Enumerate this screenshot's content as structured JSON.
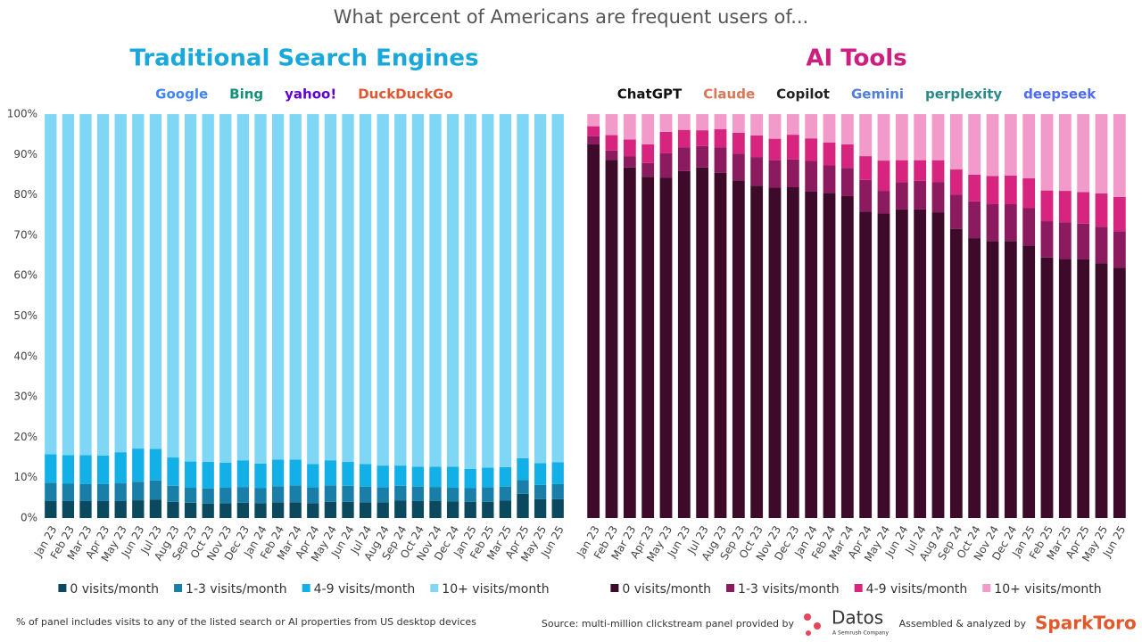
{
  "title": "What percent of Americans are frequent users of...",
  "footer": {
    "note": "% of panel includes visits to any of the listed search or AI properties from US desktop devices",
    "source": "Source: multi-million clickstream panel provided by",
    "datos": "Datos",
    "datos_tag": "A Semrush Company",
    "assembled": "Assembled & analyzed by",
    "sparktoro": "SparkToro"
  },
  "chart_data": [
    {
      "type": "stacked_bar",
      "title": "Traditional Search Engines",
      "logos": [
        "Google",
        "Bing",
        "yahoo!",
        "DuckDuckGo"
      ],
      "categories": [
        "Jan 23",
        "Feb 23",
        "Mar 23",
        "Apr 23",
        "May 23",
        "Jun 23",
        "Jul 23",
        "Aug 23",
        "Sep 23",
        "Oct 23",
        "Nov 23",
        "Dec 23",
        "Jan 24",
        "Feb 24",
        "Mar 24",
        "Apr 24",
        "May 24",
        "Jun 24",
        "Jul 24",
        "Aug 24",
        "Sep 24",
        "Oct 24",
        "Nov 24",
        "Dec 24",
        "Jan 25",
        "Feb 25",
        "Mar 25",
        "Apr 25",
        "May 25",
        "Jun 25"
      ],
      "ylim": [
        0,
        100
      ],
      "yticks": [
        {
          "value": 0,
          "label": "0%"
        },
        {
          "value": 10,
          "label": "10%"
        },
        {
          "value": 20,
          "label": "20%"
        },
        {
          "value": 30,
          "label": "30%"
        },
        {
          "value": 40,
          "label": "40%"
        },
        {
          "value": 50,
          "label": "50%"
        },
        {
          "value": 60,
          "label": "60%"
        },
        {
          "value": 70,
          "label": "70%"
        },
        {
          "value": 80,
          "label": "80%"
        },
        {
          "value": 90,
          "label": "90%"
        },
        {
          "value": 100,
          "label": "100%"
        }
      ],
      "series": [
        {
          "name": "0 visits/month",
          "color": "#0b4a5e",
          "values": [
            4.2,
            4.2,
            4.2,
            4.2,
            4.2,
            4.4,
            4.6,
            4.0,
            3.8,
            3.6,
            3.7,
            3.8,
            3.7,
            3.9,
            3.9,
            3.7,
            4.0,
            4.0,
            3.9,
            3.9,
            4.3,
            4.2,
            4.2,
            4.1,
            4.0,
            4.0,
            4.3,
            6.0,
            4.7,
            4.7
          ]
        },
        {
          "name": "1-3 visits/month",
          "color": "#1a7fa8",
          "values": [
            4.5,
            4.3,
            4.2,
            4.2,
            4.4,
            4.6,
            4.7,
            4.0,
            3.7,
            3.7,
            3.8,
            3.9,
            3.7,
            4.0,
            4.2,
            3.9,
            4.1,
            4.0,
            3.9,
            3.7,
            3.7,
            3.6,
            3.5,
            3.4,
            3.4,
            3.6,
            3.5,
            3.4,
            3.5,
            3.7
          ]
        },
        {
          "name": "4-9 visits/month",
          "color": "#12b0e6",
          "values": [
            7.1,
            7.1,
            7.2,
            7.1,
            7.7,
            8.2,
            7.8,
            7.0,
            6.5,
            6.6,
            6.2,
            6.6,
            6.1,
            6.6,
            6.4,
            5.8,
            6.2,
            5.9,
            5.6,
            5.4,
            5.0,
            4.9,
            5.0,
            5.2,
            4.8,
            4.9,
            4.8,
            5.4,
            5.4,
            5.4
          ]
        },
        {
          "name": "10+ visits/month",
          "color": "#7fd6f5",
          "values": [
            84.2,
            84.4,
            84.4,
            84.5,
            83.7,
            82.8,
            82.9,
            85.0,
            86.0,
            86.1,
            86.3,
            85.7,
            86.5,
            85.5,
            85.5,
            86.6,
            85.7,
            86.1,
            86.6,
            87.0,
            87.0,
            87.3,
            87.3,
            87.3,
            87.8,
            87.5,
            87.4,
            85.2,
            86.4,
            86.2
          ]
        }
      ]
    },
    {
      "type": "stacked_bar",
      "title": "AI Tools",
      "logos": [
        "ChatGPT",
        "Claude",
        "Copilot",
        "Gemini",
        "perplexity",
        "deepseek"
      ],
      "categories": [
        "Jan 23",
        "Feb 23",
        "Mar 23",
        "Apr 23",
        "May 23",
        "Jun 23",
        "Jul 23",
        "Aug 23",
        "Sep 23",
        "Oct 23",
        "Nov 23",
        "Dec 23",
        "Jan 24",
        "Feb 24",
        "Mar 24",
        "Apr 24",
        "May 24",
        "Jun 24",
        "Jul 24",
        "Aug 24",
        "Sep 24",
        "Oct 24",
        "Nov 24",
        "Dec 24",
        "Jan 25",
        "Feb 25",
        "Mar 25",
        "Apr 25",
        "May 25",
        "Jun 25"
      ],
      "ylim": [
        0,
        100
      ],
      "series": [
        {
          "name": "0 visits/month",
          "color": "#3d0a2a",
          "values": [
            92.5,
            88.7,
            86.8,
            84.5,
            84.3,
            85.9,
            86.8,
            85.5,
            83.6,
            82.3,
            81.8,
            81.9,
            80.8,
            80.5,
            79.7,
            75.9,
            75.4,
            76.4,
            76.4,
            75.7,
            71.6,
            69.3,
            68.6,
            68.6,
            67.5,
            64.5,
            64.2,
            64.1,
            63.1,
            62.0
          ]
        },
        {
          "name": "1-3 visits/month",
          "color": "#8c1a5e",
          "values": [
            2.0,
            2.3,
            2.8,
            3.4,
            6.0,
            5.9,
            5.3,
            6.3,
            6.6,
            7.0,
            6.8,
            6.9,
            7.6,
            6.8,
            7.0,
            7.8,
            5.6,
            6.7,
            7.1,
            7.5,
            8.5,
            9.1,
            9.1,
            9.1,
            9.3,
            9.0,
            9.0,
            8.8,
            9.0,
            9.0
          ]
        },
        {
          "name": "4-9 visits/month",
          "color": "#d6247f",
          "values": [
            2.5,
            3.8,
            4.1,
            4.6,
            5.3,
            4.3,
            3.9,
            4.5,
            5.2,
            5.4,
            5.3,
            6.1,
            5.6,
            5.7,
            5.8,
            5.9,
            7.5,
            5.5,
            5.1,
            5.4,
            6.2,
            6.6,
            7.0,
            7.1,
            7.3,
            7.6,
            7.8,
            7.8,
            8.3,
            8.5
          ]
        },
        {
          "name": "10+ visits/month",
          "color": "#f29ac9",
          "values": [
            3.0,
            5.2,
            6.3,
            7.5,
            4.4,
            3.9,
            4.0,
            3.7,
            4.6,
            5.3,
            6.1,
            5.1,
            6.0,
            7.0,
            7.5,
            10.4,
            11.5,
            11.4,
            11.4,
            11.4,
            13.7,
            15.0,
            15.3,
            15.2,
            15.9,
            18.9,
            19.0,
            19.3,
            19.6,
            20.5
          ]
        }
      ]
    }
  ]
}
